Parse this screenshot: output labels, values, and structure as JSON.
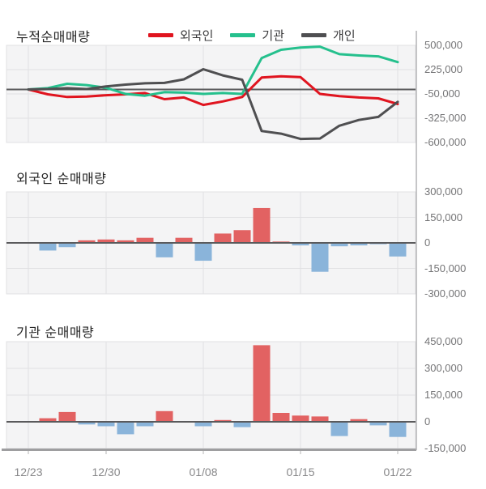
{
  "colors": {
    "foreigner": "#e0141f",
    "institution": "#25c08d",
    "individual": "#4f4f51",
    "bar_positive": "#e26262",
    "bar_negative": "#8ab4da",
    "panel_bg": "#f4f4f5",
    "grid": "#e1e1e3",
    "zero_line": "#5a5a5c",
    "axis_line": "#b4b4b6",
    "panel_bottom_edge": "#9e9ea0"
  },
  "legend": [
    {
      "label": "외국인",
      "color_key": "foreigner"
    },
    {
      "label": "기관",
      "color_key": "institution"
    },
    {
      "label": "개인",
      "color_key": "individual"
    }
  ],
  "x_axis": {
    "tick_labels": [
      "12/23",
      "12/30",
      "01/08",
      "01/15",
      "01/22"
    ],
    "tick_indices": [
      0,
      4,
      9,
      14,
      19
    ],
    "num_points": 20
  },
  "chart_data": [
    {
      "type": "line",
      "title": "누적순매매량",
      "ylim": [
        -600000,
        500000
      ],
      "grid": true,
      "legend_position": "top",
      "y_ticks": [
        {
          "label": "500,000",
          "value": 500000
        },
        {
          "label": "225,000",
          "value": 225000
        },
        {
          "label": "-50,000",
          "value": -50000
        },
        {
          "label": "-325,000",
          "value": -325000
        },
        {
          "label": "-600,000",
          "value": -600000
        }
      ],
      "series": [
        {
          "name": "외국인",
          "color_key": "foreigner",
          "values": [
            0,
            -55000,
            -85000,
            -80000,
            -65000,
            -55000,
            -40000,
            -110000,
            -90000,
            -175000,
            -135000,
            -85000,
            135000,
            150000,
            140000,
            -50000,
            -75000,
            -90000,
            -100000,
            -165000
          ]
        },
        {
          "name": "기관",
          "color_key": "institution",
          "values": [
            0,
            15000,
            65000,
            50000,
            20000,
            -50000,
            -70000,
            -30000,
            -35000,
            -50000,
            -40000,
            -50000,
            355000,
            450000,
            475000,
            485000,
            400000,
            385000,
            375000,
            310000
          ]
        },
        {
          "name": "개인",
          "color_key": "individual",
          "values": [
            0,
            5000,
            15000,
            5000,
            35000,
            55000,
            70000,
            75000,
            115000,
            230000,
            160000,
            110000,
            -470000,
            -500000,
            -560000,
            -555000,
            -410000,
            -345000,
            -310000,
            -140000
          ]
        }
      ]
    },
    {
      "type": "bar",
      "title": "외국인 순매매량",
      "ylim": [
        -300000,
        300000
      ],
      "grid": true,
      "y_ticks": [
        {
          "label": "300,000",
          "value": 300000
        },
        {
          "label": "150,000",
          "value": 150000
        },
        {
          "label": "0",
          "value": 0
        },
        {
          "label": "-150,000",
          "value": -150000
        },
        {
          "label": "-300,000",
          "value": -300000
        }
      ],
      "values": [
        0,
        -45000,
        -25000,
        15000,
        20000,
        15000,
        30000,
        -85000,
        30000,
        -105000,
        55000,
        75000,
        205000,
        8000,
        -15000,
        -170000,
        -20000,
        -15000,
        -8000,
        -80000
      ]
    },
    {
      "type": "bar",
      "title": "기관 순매매량",
      "ylim": [
        -150000,
        450000
      ],
      "grid": true,
      "y_ticks": [
        {
          "label": "450,000",
          "value": 450000
        },
        {
          "label": "300,000",
          "value": 300000
        },
        {
          "label": "150,000",
          "value": 150000
        },
        {
          "label": "0",
          "value": 0
        },
        {
          "label": "-150,000",
          "value": -150000
        }
      ],
      "values": [
        0,
        20000,
        55000,
        -15000,
        -25000,
        -70000,
        -25000,
        60000,
        0,
        -25000,
        10000,
        -30000,
        430000,
        50000,
        35000,
        30000,
        -80000,
        15000,
        -20000,
        -85000
      ]
    }
  ]
}
